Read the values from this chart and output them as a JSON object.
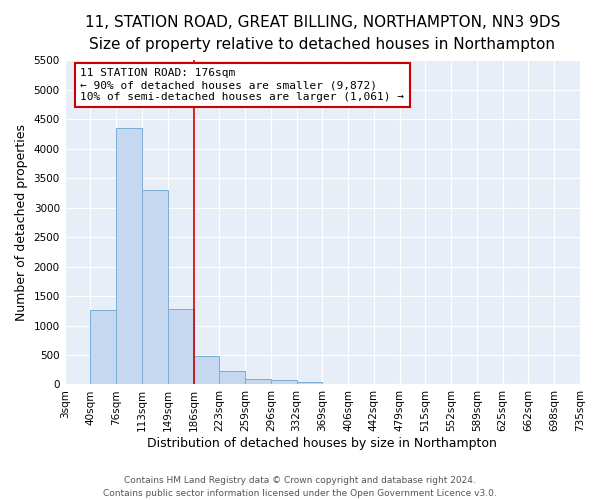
{
  "title": "11, STATION ROAD, GREAT BILLING, NORTHAMPTON, NN3 9DS",
  "subtitle": "Size of property relative to detached houses in Northampton",
  "xlabel": "Distribution of detached houses by size in Northampton",
  "ylabel": "Number of detached properties",
  "footer_line1": "Contains HM Land Registry data © Crown copyright and database right 2024.",
  "footer_line2": "Contains public sector information licensed under the Open Government Licence v3.0.",
  "bin_labels": [
    "3sqm",
    "40sqm",
    "76sqm",
    "113sqm",
    "149sqm",
    "186sqm",
    "223sqm",
    "259sqm",
    "296sqm",
    "332sqm",
    "369sqm",
    "406sqm",
    "442sqm",
    "479sqm",
    "515sqm",
    "552sqm",
    "589sqm",
    "625sqm",
    "662sqm",
    "698sqm",
    "735sqm"
  ],
  "bar_values": [
    0,
    1260,
    4350,
    3300,
    1280,
    480,
    220,
    100,
    70,
    50,
    0,
    0,
    0,
    0,
    0,
    0,
    0,
    0,
    0,
    0
  ],
  "bar_color": "#c5d8f0",
  "bar_edge_color": "#7aadd4",
  "background_color": "#e8eef8",
  "grid_color": "#ffffff",
  "fig_background": "#ffffff",
  "ylim": [
    0,
    5500
  ],
  "yticks": [
    0,
    500,
    1000,
    1500,
    2000,
    2500,
    3000,
    3500,
    4000,
    4500,
    5000,
    5500
  ],
  "red_line_x": 5,
  "property_label": "11 STATION ROAD: 176sqm",
  "annotation_line1": "← 90% of detached houses are smaller (9,872)",
  "annotation_line2": "10% of semi-detached houses are larger (1,061) →",
  "red_line_color": "#cc0000",
  "annotation_box_color": "#ffffff",
  "annotation_box_edge": "#cc0000",
  "title_fontsize": 11,
  "subtitle_fontsize": 9.5,
  "axis_label_fontsize": 9,
  "tick_fontsize": 7.5,
  "annotation_fontsize": 8,
  "footer_fontsize": 6.5
}
